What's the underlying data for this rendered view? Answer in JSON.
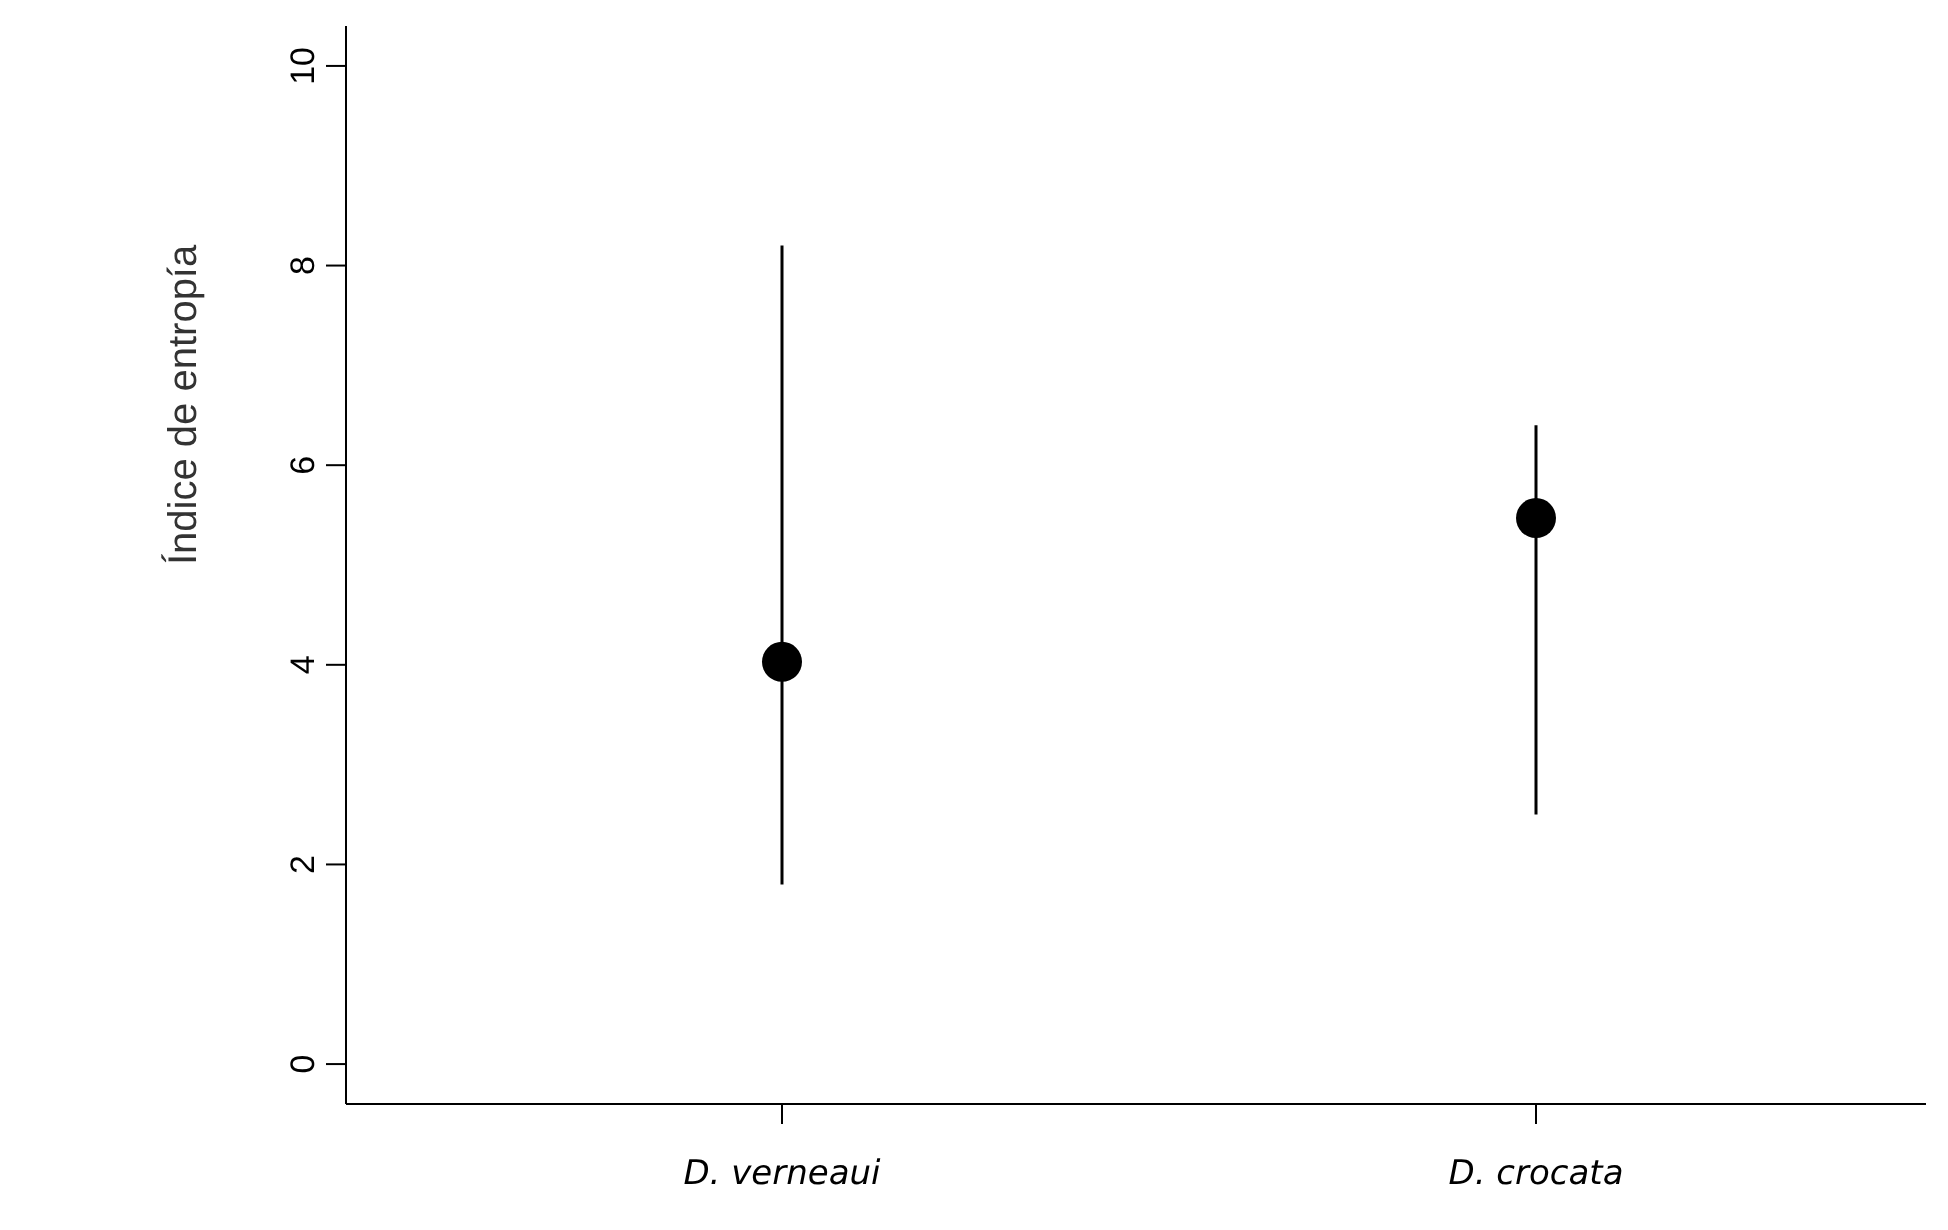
{
  "chart_data": {
    "type": "scatter",
    "ylabel": "Índice de entropía",
    "categories": [
      "D. verneaui",
      "D. crocata"
    ],
    "values": [
      4.03,
      5.47
    ],
    "errors": [
      [
        1.8,
        8.2
      ],
      [
        2.5,
        6.4
      ]
    ],
    "color": "#000000",
    "marker": "circle",
    "ylim": [
      -0.4,
      10.4
    ],
    "yticks": [
      0,
      2,
      4,
      6,
      8,
      10
    ],
    "grid": false,
    "legend": false
  }
}
